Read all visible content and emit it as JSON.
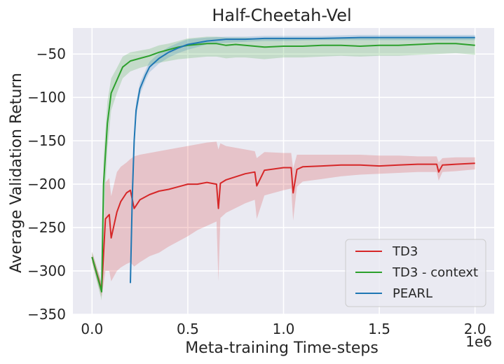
{
  "chart_data": {
    "type": "line",
    "title": "Half-Cheetah-Vel",
    "xlabel": "Meta-training Time-steps",
    "ylabel": "Average Validation Return",
    "x_offset_label": "1e6",
    "xlim": [
      -0.1,
      2.1
    ],
    "ylim": [
      -350,
      -20
    ],
    "xticks": [
      0.0,
      0.5,
      1.0,
      1.5,
      2.0
    ],
    "xtick_labels": [
      "0.0",
      "0.5",
      "1.0",
      "1.5",
      "2.0"
    ],
    "yticks": [
      -350,
      -300,
      -250,
      -200,
      -150,
      -100,
      -50
    ],
    "ytick_labels": [
      "−350",
      "−300",
      "−250",
      "−200",
      "−150",
      "−100",
      "−50"
    ],
    "grid": true,
    "legend_position": "lower-right",
    "series": [
      {
        "name": "TD3",
        "color": "#d62728",
        "x": [
          0.0,
          0.05,
          0.07,
          0.09,
          0.1,
          0.13,
          0.15,
          0.18,
          0.2,
          0.22,
          0.25,
          0.3,
          0.35,
          0.4,
          0.45,
          0.5,
          0.55,
          0.6,
          0.65,
          0.66,
          0.67,
          0.7,
          0.8,
          0.85,
          0.86,
          0.9,
          1.0,
          1.04,
          1.05,
          1.07,
          1.1,
          1.2,
          1.3,
          1.4,
          1.5,
          1.6,
          1.7,
          1.8,
          1.81,
          1.83,
          1.9,
          2.0
        ],
        "mean": [
          -284,
          -322,
          -240,
          -235,
          -262,
          -232,
          -220,
          -210,
          -207,
          -228,
          -218,
          -212,
          -208,
          -206,
          -203,
          -200,
          -200,
          -198,
          -200,
          -228,
          -199,
          -195,
          -188,
          -186,
          -202,
          -184,
          -181,
          -181,
          -210,
          -183,
          -180,
          -179,
          -178,
          -178,
          -179,
          -178,
          -177,
          -177,
          -186,
          -178,
          -177,
          -176
        ],
        "lower": [
          -290,
          -330,
          -300,
          -300,
          -312,
          -300,
          -296,
          -292,
          -290,
          -295,
          -290,
          -283,
          -279,
          -272,
          -266,
          -260,
          -253,
          -248,
          -243,
          -312,
          -239,
          -233,
          -222,
          -218,
          -240,
          -213,
          -207,
          -205,
          -242,
          -203,
          -197,
          -194,
          -191,
          -189,
          -188,
          -187,
          -186,
          -186,
          -196,
          -186,
          -185,
          -183
        ],
        "upper": [
          -278,
          -314,
          -198,
          -193,
          -214,
          -186,
          -180,
          -175,
          -171,
          -168,
          -166,
          -164,
          -162,
          -160,
          -158,
          -156,
          -154,
          -152,
          -151,
          -160,
          -153,
          -156,
          -160,
          -162,
          -170,
          -163,
          -164,
          -164,
          -182,
          -166,
          -166,
          -166,
          -166,
          -166,
          -167,
          -167,
          -168,
          -168,
          -175,
          -170,
          -169,
          -169
        ]
      },
      {
        "name": "TD3 - context",
        "color": "#2ca02c",
        "x": [
          0.0,
          0.05,
          0.06,
          0.08,
          0.1,
          0.13,
          0.16,
          0.2,
          0.25,
          0.3,
          0.35,
          0.4,
          0.45,
          0.5,
          0.55,
          0.6,
          0.65,
          0.7,
          0.75,
          0.8,
          0.85,
          0.9,
          1.0,
          1.1,
          1.2,
          1.3,
          1.4,
          1.5,
          1.6,
          1.7,
          1.8,
          1.9,
          2.0
        ],
        "mean": [
          -284,
          -324,
          -200,
          -130,
          -95,
          -80,
          -65,
          -58,
          -55,
          -52,
          -48,
          -45,
          -42,
          -40,
          -39,
          -38,
          -38,
          -40,
          -39,
          -40,
          -41,
          -42,
          -41,
          -41,
          -40,
          -40,
          -41,
          -40,
          -40,
          -39,
          -38,
          -38,
          -40
        ],
        "lower": [
          -290,
          -334,
          -245,
          -160,
          -115,
          -95,
          -78,
          -70,
          -66,
          -63,
          -60,
          -58,
          -56,
          -55,
          -54,
          -53,
          -53,
          -55,
          -54,
          -54,
          -55,
          -56,
          -54,
          -54,
          -53,
          -52,
          -53,
          -52,
          -52,
          -51,
          -50,
          -49,
          -51
        ],
        "upper": [
          -278,
          -314,
          -170,
          -105,
          -78,
          -66,
          -53,
          -48,
          -46,
          -44,
          -40,
          -38,
          -35,
          -32,
          -31,
          -30,
          -30,
          -31,
          -31,
          -31,
          -32,
          -32,
          -32,
          -32,
          -31,
          -31,
          -31,
          -31,
          -31,
          -31,
          -31,
          -31,
          -31
        ]
      },
      {
        "name": "PEARL",
        "color": "#1f77b4",
        "x": [
          0.2,
          0.21,
          0.22,
          0.23,
          0.25,
          0.28,
          0.3,
          0.35,
          0.4,
          0.45,
          0.5,
          0.55,
          0.6,
          0.7,
          0.8,
          0.9,
          1.0,
          1.2,
          1.4,
          1.6,
          1.8,
          2.0
        ],
        "mean": [
          -314,
          -215,
          -150,
          -115,
          -90,
          -74,
          -65,
          -55,
          -48,
          -43,
          -39,
          -37,
          -35,
          -33,
          -33,
          -32,
          -32,
          -32,
          -31,
          -31,
          -31,
          -31
        ],
        "lower": [
          -320,
          -228,
          -160,
          -124,
          -97,
          -80,
          -71,
          -61,
          -54,
          -49,
          -45,
          -42,
          -39,
          -37,
          -36,
          -35,
          -35,
          -34,
          -34,
          -34,
          -34,
          -34
        ],
        "upper": [
          -308,
          -202,
          -140,
          -106,
          -83,
          -68,
          -59,
          -49,
          -42,
          -37,
          -33,
          -32,
          -31,
          -30,
          -30,
          -29,
          -29,
          -29,
          -28,
          -28,
          -28,
          -28
        ]
      }
    ]
  }
}
